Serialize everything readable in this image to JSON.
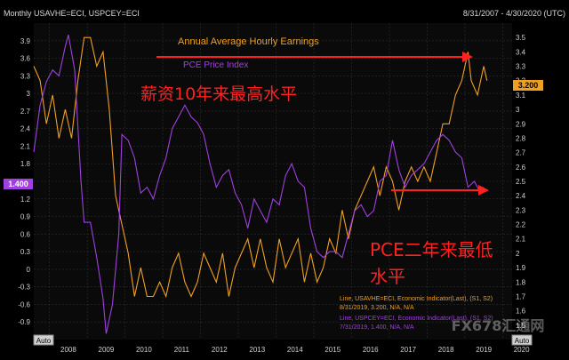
{
  "header": {
    "title": "Monthly USAVHE=ECI, USPCEY=ECI",
    "date_range": "8/31/2007 - 4/30/2020 (UTC)"
  },
  "auto_labels": {
    "left": "Auto",
    "right": "Auto"
  },
  "colors": {
    "background": "#000000",
    "plot_background": "#0a0a0a",
    "grid": "#2f2f2f",
    "axis_text": "#d0d0d0",
    "earnings": "#f0a020",
    "pce": "#a040e0",
    "annotation_red": "#ff2020",
    "title_text": "#d8d8d8"
  },
  "chart_data": {
    "type": "line",
    "x_ticks": [
      "2008",
      "2009",
      "2010",
      "2011",
      "2012",
      "2013",
      "2014",
      "2015",
      "2016",
      "2017",
      "2018",
      "2019",
      "2020"
    ],
    "xlim": [
      "2007-08",
      "2020-04"
    ],
    "left_axis": {
      "ticks": [
        "3.9",
        "3.6",
        "3.3",
        "3",
        "2.7",
        "2.4",
        "2.1",
        "1.8",
        "1.5",
        "1.2",
        "0.9",
        "0.6",
        "0.3",
        "0",
        "-0.3",
        "-0.6",
        "-0.9"
      ],
      "ylim": [
        -1.2,
        4.2
      ]
    },
    "right_axis": {
      "ticks": [
        "3.5",
        "3.4",
        "3.3",
        "3.2",
        "3.1",
        "3",
        "2.9",
        "2.8",
        "2.7",
        "2.6",
        "2.5",
        "2.4",
        "2.3",
        "2.2",
        "2.1",
        "2",
        "1.9",
        "1.8",
        "1.7",
        "1.6",
        "1.5"
      ],
      "ylim": [
        1.4,
        3.6
      ]
    },
    "series": [
      {
        "name": "Annual Average Hourly Earnings",
        "axis": "right",
        "last_value_label": "3.200",
        "points": [
          [
            "2007-08",
            3.3
          ],
          [
            "2007-10",
            3.2
          ],
          [
            "2007-12",
            2.9
          ],
          [
            "2008-02",
            3.1
          ],
          [
            "2008-04",
            2.8
          ],
          [
            "2008-06",
            3.0
          ],
          [
            "2008-08",
            2.8
          ],
          [
            "2008-10",
            3.2
          ],
          [
            "2008-12",
            3.5
          ],
          [
            "2009-02",
            3.5
          ],
          [
            "2009-04",
            3.3
          ],
          [
            "2009-06",
            3.4
          ],
          [
            "2009-08",
            3.0
          ],
          [
            "2009-10",
            2.4
          ],
          [
            "2009-12",
            2.2
          ],
          [
            "2010-02",
            2.0
          ],
          [
            "2010-04",
            1.7
          ],
          [
            "2010-06",
            1.9
          ],
          [
            "2010-08",
            1.7
          ],
          [
            "2010-10",
            1.7
          ],
          [
            "2010-12",
            1.8
          ],
          [
            "2011-02",
            1.7
          ],
          [
            "2011-04",
            1.9
          ],
          [
            "2011-06",
            2.0
          ],
          [
            "2011-08",
            1.8
          ],
          [
            "2011-10",
            1.7
          ],
          [
            "2011-12",
            1.8
          ],
          [
            "2012-02",
            2.0
          ],
          [
            "2012-04",
            1.9
          ],
          [
            "2012-06",
            1.8
          ],
          [
            "2012-08",
            2.0
          ],
          [
            "2012-10",
            1.7
          ],
          [
            "2012-12",
            1.9
          ],
          [
            "2013-02",
            2.0
          ],
          [
            "2013-04",
            2.1
          ],
          [
            "2013-06",
            1.9
          ],
          [
            "2013-08",
            2.1
          ],
          [
            "2013-10",
            1.9
          ],
          [
            "2013-12",
            1.8
          ],
          [
            "2014-02",
            2.1
          ],
          [
            "2014-04",
            1.9
          ],
          [
            "2014-06",
            2.0
          ],
          [
            "2014-08",
            2.1
          ],
          [
            "2014-10",
            1.8
          ],
          [
            "2014-12",
            2.0
          ],
          [
            "2015-02",
            1.8
          ],
          [
            "2015-04",
            1.9
          ],
          [
            "2015-06",
            2.1
          ],
          [
            "2015-08",
            2.0
          ],
          [
            "2015-10",
            2.3
          ],
          [
            "2015-12",
            2.1
          ],
          [
            "2016-02",
            2.3
          ],
          [
            "2016-04",
            2.4
          ],
          [
            "2016-06",
            2.5
          ],
          [
            "2016-08",
            2.6
          ],
          [
            "2016-10",
            2.4
          ],
          [
            "2016-12",
            2.6
          ],
          [
            "2017-02",
            2.5
          ],
          [
            "2017-04",
            2.3
          ],
          [
            "2017-06",
            2.5
          ],
          [
            "2017-08",
            2.6
          ],
          [
            "2017-10",
            2.5
          ],
          [
            "2017-12",
            2.6
          ],
          [
            "2018-02",
            2.5
          ],
          [
            "2018-04",
            2.7
          ],
          [
            "2018-06",
            2.9
          ],
          [
            "2018-08",
            2.9
          ],
          [
            "2018-10",
            3.1
          ],
          [
            "2018-12",
            3.2
          ],
          [
            "2019-02",
            3.4
          ],
          [
            "2019-03",
            3.2
          ],
          [
            "2019-05",
            3.1
          ],
          [
            "2019-07",
            3.3
          ],
          [
            "2019-08",
            3.2
          ]
        ]
      },
      {
        "name": "PCE Price Index",
        "axis": "left",
        "last_value_label": "1.400",
        "points": [
          [
            "2007-08",
            2.0
          ],
          [
            "2007-10",
            2.8
          ],
          [
            "2007-12",
            3.2
          ],
          [
            "2008-02",
            3.4
          ],
          [
            "2008-04",
            3.3
          ],
          [
            "2008-06",
            3.8
          ],
          [
            "2008-07",
            4.0
          ],
          [
            "2008-09",
            3.4
          ],
          [
            "2008-11",
            1.5
          ],
          [
            "2008-12",
            0.8
          ],
          [
            "2009-02",
            0.8
          ],
          [
            "2009-04",
            0.2
          ],
          [
            "2009-06",
            -0.5
          ],
          [
            "2009-07",
            -1.1
          ],
          [
            "2009-09",
            -0.6
          ],
          [
            "2009-11",
            0.6
          ],
          [
            "2009-12",
            2.3
          ],
          [
            "2010-02",
            2.2
          ],
          [
            "2010-04",
            1.9
          ],
          [
            "2010-06",
            1.3
          ],
          [
            "2010-08",
            1.4
          ],
          [
            "2010-10",
            1.2
          ],
          [
            "2010-12",
            1.6
          ],
          [
            "2011-02",
            1.9
          ],
          [
            "2011-04",
            2.4
          ],
          [
            "2011-06",
            2.6
          ],
          [
            "2011-08",
            2.8
          ],
          [
            "2011-10",
            2.6
          ],
          [
            "2011-12",
            2.5
          ],
          [
            "2012-02",
            2.3
          ],
          [
            "2012-04",
            1.8
          ],
          [
            "2012-06",
            1.4
          ],
          [
            "2012-08",
            1.6
          ],
          [
            "2012-10",
            1.7
          ],
          [
            "2012-12",
            1.3
          ],
          [
            "2013-02",
            1.1
          ],
          [
            "2013-04",
            0.7
          ],
          [
            "2013-06",
            1.2
          ],
          [
            "2013-08",
            1.0
          ],
          [
            "2013-10",
            0.8
          ],
          [
            "2013-12",
            1.2
          ],
          [
            "2014-02",
            1.1
          ],
          [
            "2014-04",
            1.6
          ],
          [
            "2014-06",
            1.8
          ],
          [
            "2014-08",
            1.5
          ],
          [
            "2014-10",
            1.4
          ],
          [
            "2014-12",
            0.7
          ],
          [
            "2015-02",
            0.3
          ],
          [
            "2015-04",
            0.2
          ],
          [
            "2015-06",
            0.3
          ],
          [
            "2015-08",
            0.3
          ],
          [
            "2015-10",
            0.2
          ],
          [
            "2015-12",
            0.6
          ],
          [
            "2016-02",
            1.0
          ],
          [
            "2016-04",
            1.1
          ],
          [
            "2016-06",
            0.9
          ],
          [
            "2016-08",
            1.0
          ],
          [
            "2016-10",
            1.5
          ],
          [
            "2016-12",
            1.6
          ],
          [
            "2017-02",
            2.2
          ],
          [
            "2017-04",
            1.7
          ],
          [
            "2017-06",
            1.4
          ],
          [
            "2017-08",
            1.6
          ],
          [
            "2017-10",
            1.7
          ],
          [
            "2017-12",
            1.8
          ],
          [
            "2018-02",
            2.0
          ],
          [
            "2018-04",
            2.2
          ],
          [
            "2018-06",
            2.3
          ],
          [
            "2018-08",
            2.2
          ],
          [
            "2018-10",
            2.0
          ],
          [
            "2018-12",
            1.9
          ],
          [
            "2019-02",
            1.4
          ],
          [
            "2019-04",
            1.5
          ],
          [
            "2019-06",
            1.3
          ],
          [
            "2019-07",
            1.4
          ]
        ]
      }
    ],
    "legend": {
      "position": "bottom-right",
      "entries": [
        {
          "line1": "Line, USAVHE=ECI, Economic Indicator(Last), (S1, S2)",
          "line2": "8/31/2019, 3.200, N/A, N/A"
        },
        {
          "line1": "Line, USPCEY=ECI, Economic Indicator(Last), (S1, S2)",
          "line2": "7/31/2019, 1.400, N/A, N/A"
        }
      ]
    },
    "annotations": {
      "earnings_label": "Annual Average Hourly Earnings",
      "pce_label": "PCE Price Index",
      "cn_top": "薪资10年来最高水平",
      "cn_bottom_line1": "PCE二年来最低",
      "cn_bottom_line2": "水平"
    },
    "watermark": "FX678汇通网"
  }
}
